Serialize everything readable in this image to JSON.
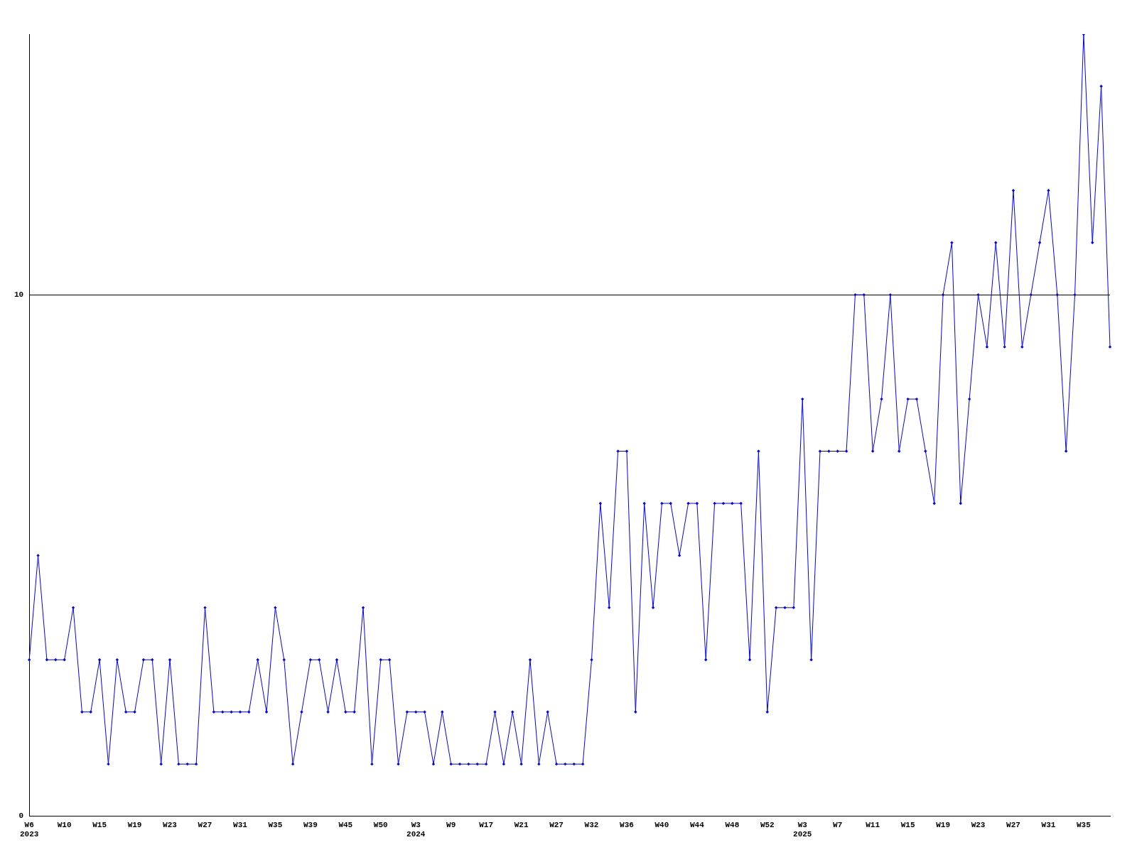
{
  "chart_data": {
    "type": "line",
    "categories": [
      "W6\n2023",
      null,
      null,
      null,
      "W10",
      null,
      null,
      null,
      "W15",
      null,
      null,
      null,
      "W19",
      null,
      null,
      null,
      "W23",
      null,
      null,
      null,
      "W27",
      null,
      null,
      null,
      "W31",
      null,
      null,
      null,
      "W35",
      null,
      null,
      null,
      "W39",
      null,
      null,
      null,
      "W45",
      null,
      null,
      null,
      "W50",
      null,
      null,
      null,
      "W3\n2024",
      null,
      null,
      null,
      "W9",
      null,
      null,
      null,
      "W17",
      null,
      null,
      null,
      "W21",
      null,
      null,
      null,
      "W27",
      null,
      null,
      null,
      "W32",
      null,
      null,
      null,
      "W36",
      null,
      null,
      null,
      "W40",
      null,
      null,
      null,
      "W44",
      null,
      null,
      null,
      "W48",
      null,
      null,
      null,
      "W52",
      null,
      null,
      null,
      "W3\n2025",
      null,
      null,
      null,
      "W7",
      null,
      null,
      null,
      "W11",
      null,
      null,
      null,
      "W15",
      null,
      null,
      null,
      "W19",
      null,
      null,
      null,
      "W23",
      null,
      null,
      null,
      "W27",
      null,
      null,
      null,
      "W31",
      null,
      null,
      null,
      "W35",
      null,
      null,
      null
    ],
    "series": [
      {
        "color": "#0000ff",
        "values": [
          3,
          5,
          3,
          3,
          3,
          4,
          2,
          2,
          3,
          1,
          3,
          2,
          2,
          3,
          3,
          1,
          3,
          1,
          1,
          1,
          4,
          2,
          2,
          2,
          2,
          2,
          3,
          2,
          4,
          3,
          1,
          2,
          3,
          3,
          2,
          3,
          2,
          2,
          4,
          1,
          3,
          3,
          1,
          2,
          2,
          2,
          1,
          2,
          1,
          1,
          1,
          1,
          1,
          2,
          1,
          2,
          1,
          3,
          1,
          2,
          1,
          1,
          1,
          1,
          3,
          6,
          4,
          7,
          7,
          2,
          6,
          4,
          6,
          6,
          5,
          6,
          6,
          3,
          6,
          6,
          6,
          6,
          3,
          7,
          2,
          4,
          4,
          4,
          8,
          3,
          7,
          7,
          7,
          7,
          10,
          10,
          7,
          8,
          10,
          7,
          8,
          8,
          7,
          6,
          10,
          11,
          6,
          8,
          10,
          9,
          11,
          9,
          12,
          9,
          10,
          11,
          12,
          10,
          7,
          10,
          15,
          11,
          14,
          9
        ]
      }
    ],
    "ylim": [
      0,
      15
    ],
    "yticks": [
      0,
      10
    ],
    "grid": "y",
    "legend": false,
    "marker": "diamond",
    "line_style": "solid"
  }
}
